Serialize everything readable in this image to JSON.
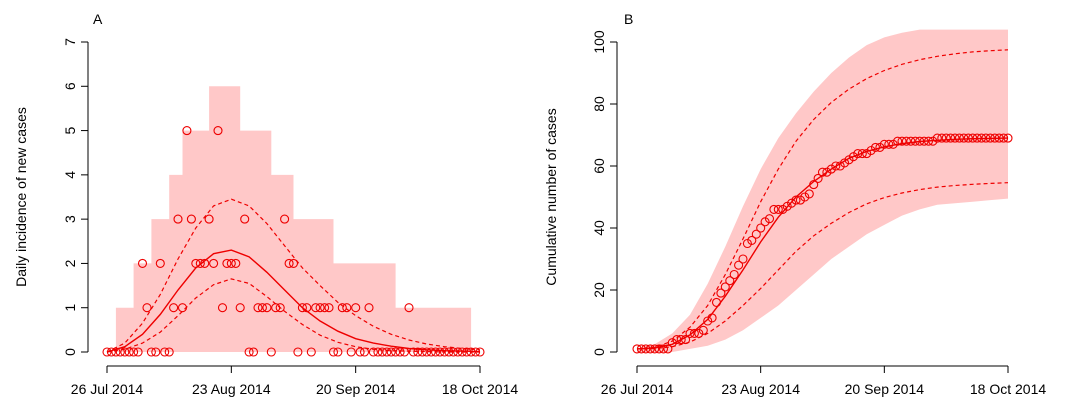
{
  "colors": {
    "band": "#ffc8c8",
    "line": "#ee0000",
    "points": "#ee0000",
    "axis": "#000000"
  },
  "chart_data": [
    {
      "type": "scatter",
      "panel_label": "A",
      "ylabel": "Daily incidence of new cases",
      "ylim": [
        0,
        7
      ],
      "yticks": [
        0,
        1,
        2,
        3,
        4,
        5,
        6,
        7
      ],
      "xlim": [
        "2014-07-26",
        "2014-10-18"
      ],
      "xticks": [
        "26 Jul 2014",
        "23 Aug 2014",
        "20 Sep 2014",
        "18 Oct 2014"
      ],
      "grid": false,
      "points": {
        "x": [
          "2014-07-26",
          "2014-07-27",
          "2014-07-28",
          "2014-07-29",
          "2014-07-30",
          "2014-07-31",
          "2014-08-01",
          "2014-08-02",
          "2014-08-03",
          "2014-08-04",
          "2014-08-05",
          "2014-08-06",
          "2014-08-07",
          "2014-08-08",
          "2014-08-09",
          "2014-08-10",
          "2014-08-11",
          "2014-08-12",
          "2014-08-13",
          "2014-08-14",
          "2014-08-15",
          "2014-08-16",
          "2014-08-17",
          "2014-08-18",
          "2014-08-19",
          "2014-08-20",
          "2014-08-21",
          "2014-08-22",
          "2014-08-23",
          "2014-08-24",
          "2014-08-25",
          "2014-08-26",
          "2014-08-27",
          "2014-08-28",
          "2014-08-29",
          "2014-08-30",
          "2014-08-31",
          "2014-09-01",
          "2014-09-02",
          "2014-09-03",
          "2014-09-04",
          "2014-09-05",
          "2014-09-06",
          "2014-09-07",
          "2014-09-08",
          "2014-09-09",
          "2014-09-10",
          "2014-09-11",
          "2014-09-12",
          "2014-09-13",
          "2014-09-14",
          "2014-09-15",
          "2014-09-16",
          "2014-09-17",
          "2014-09-18",
          "2014-09-19",
          "2014-09-20",
          "2014-09-21",
          "2014-09-22",
          "2014-09-23",
          "2014-09-24",
          "2014-09-25",
          "2014-09-26",
          "2014-09-27",
          "2014-09-28",
          "2014-09-29",
          "2014-09-30",
          "2014-10-01",
          "2014-10-02",
          "2014-10-03",
          "2014-10-04",
          "2014-10-05",
          "2014-10-06",
          "2014-10-07",
          "2014-10-08",
          "2014-10-09",
          "2014-10-10",
          "2014-10-11",
          "2014-10-12",
          "2014-10-13",
          "2014-10-14",
          "2014-10-15",
          "2014-10-16",
          "2014-10-17",
          "2014-10-18"
        ],
        "y": [
          0,
          0,
          0,
          0,
          0,
          0,
          0,
          0,
          2,
          1,
          0,
          0,
          2,
          0,
          0,
          1,
          3,
          1,
          5,
          3,
          2,
          2,
          2,
          3,
          2,
          5,
          1,
          2,
          2,
          2,
          1,
          3,
          0,
          0,
          1,
          1,
          1,
          0,
          1,
          1,
          3,
          2,
          2,
          0,
          1,
          1,
          0,
          1,
          1,
          1,
          1,
          0,
          0,
          1,
          1,
          0,
          1,
          0,
          0,
          1,
          0,
          0,
          0,
          0,
          0,
          0,
          0,
          0,
          1,
          0,
          0,
          0,
          0,
          0,
          0,
          0,
          0,
          0,
          0,
          0,
          0,
          0,
          0,
          0,
          0
        ]
      },
      "median": {
        "x": [
          "2014-07-26",
          "2014-07-30",
          "2014-08-03",
          "2014-08-07",
          "2014-08-11",
          "2014-08-15",
          "2014-08-19",
          "2014-08-23",
          "2014-08-27",
          "2014-08-31",
          "2014-09-04",
          "2014-09-08",
          "2014-09-12",
          "2014-09-16",
          "2014-09-20",
          "2014-09-24",
          "2014-09-28",
          "2014-10-02",
          "2014-10-06",
          "2014-10-10",
          "2014-10-14",
          "2014-10-18"
        ],
        "y": [
          0.0,
          0.12,
          0.4,
          0.85,
          1.4,
          1.9,
          2.22,
          2.3,
          2.15,
          1.8,
          1.4,
          1.0,
          0.7,
          0.47,
          0.3,
          0.2,
          0.13,
          0.08,
          0.05,
          0.03,
          0.02,
          0.01
        ]
      },
      "ci_lower": {
        "x": [
          "2014-07-26",
          "2014-07-30",
          "2014-08-03",
          "2014-08-07",
          "2014-08-11",
          "2014-08-15",
          "2014-08-19",
          "2014-08-23",
          "2014-08-27",
          "2014-08-31",
          "2014-09-04",
          "2014-09-08",
          "2014-09-12",
          "2014-09-16",
          "2014-09-20",
          "2014-09-24",
          "2014-09-28",
          "2014-10-02",
          "2014-10-06",
          "2014-10-10",
          "2014-10-14",
          "2014-10-18"
        ],
        "y": [
          0.0,
          0.06,
          0.2,
          0.45,
          0.82,
          1.22,
          1.52,
          1.65,
          1.55,
          1.25,
          0.92,
          0.62,
          0.38,
          0.22,
          0.12,
          0.06,
          0.03,
          0.02,
          0.01,
          0.0,
          0.0,
          0.0
        ]
      },
      "ci_upper": {
        "x": [
          "2014-07-26",
          "2014-07-30",
          "2014-08-03",
          "2014-08-07",
          "2014-08-11",
          "2014-08-15",
          "2014-08-19",
          "2014-08-23",
          "2014-08-27",
          "2014-08-31",
          "2014-09-04",
          "2014-09-08",
          "2014-09-12",
          "2014-09-16",
          "2014-09-20",
          "2014-09-24",
          "2014-09-28",
          "2014-10-02",
          "2014-10-06",
          "2014-10-10",
          "2014-10-14",
          "2014-10-18"
        ],
        "y": [
          0.0,
          0.2,
          0.65,
          1.3,
          2.1,
          2.8,
          3.3,
          3.45,
          3.3,
          2.9,
          2.4,
          1.9,
          1.5,
          1.12,
          0.82,
          0.58,
          0.4,
          0.27,
          0.18,
          0.12,
          0.08,
          0.05
        ]
      },
      "band_upper": {
        "x": [
          "2014-07-26",
          "2014-07-28",
          "2014-07-28",
          "2014-08-01",
          "2014-08-01",
          "2014-08-05",
          "2014-08-05",
          "2014-08-09",
          "2014-08-09",
          "2014-08-12",
          "2014-08-12",
          "2014-08-18",
          "2014-08-18",
          "2014-08-25",
          "2014-08-25",
          "2014-09-01",
          "2014-09-01",
          "2014-09-06",
          "2014-09-06",
          "2014-09-15",
          "2014-09-15",
          "2014-09-29",
          "2014-09-29",
          "2014-10-16",
          "2014-10-16",
          "2014-10-18"
        ],
        "y": [
          0,
          0,
          1,
          1,
          2,
          2,
          3,
          3,
          4,
          4,
          5,
          5,
          6,
          6,
          5,
          5,
          4,
          4,
          3,
          3,
          2,
          2,
          1,
          1,
          0,
          0
        ]
      }
    },
    {
      "type": "scatter",
      "panel_label": "B",
      "ylabel": "Cumulative number of cases",
      "ylim": [
        0,
        100
      ],
      "yticks": [
        0,
        20,
        40,
        60,
        80,
        100
      ],
      "xlim": [
        "2014-07-26",
        "2014-10-18"
      ],
      "xticks": [
        "26 Jul 2014",
        "23 Aug 2014",
        "20 Sep 2014",
        "18 Oct 2014"
      ],
      "grid": false,
      "points": {
        "x": [
          "2014-07-26",
          "2014-07-27",
          "2014-07-28",
          "2014-07-29",
          "2014-07-30",
          "2014-07-31",
          "2014-08-01",
          "2014-08-02",
          "2014-08-03",
          "2014-08-04",
          "2014-08-05",
          "2014-08-06",
          "2014-08-07",
          "2014-08-08",
          "2014-08-09",
          "2014-08-10",
          "2014-08-11",
          "2014-08-12",
          "2014-08-13",
          "2014-08-14",
          "2014-08-15",
          "2014-08-16",
          "2014-08-17",
          "2014-08-18",
          "2014-08-19",
          "2014-08-20",
          "2014-08-21",
          "2014-08-22",
          "2014-08-23",
          "2014-08-24",
          "2014-08-25",
          "2014-08-26",
          "2014-08-27",
          "2014-08-28",
          "2014-08-29",
          "2014-08-30",
          "2014-08-31",
          "2014-09-01",
          "2014-09-02",
          "2014-09-03",
          "2014-09-04",
          "2014-09-05",
          "2014-09-06",
          "2014-09-07",
          "2014-09-08",
          "2014-09-09",
          "2014-09-10",
          "2014-09-11",
          "2014-09-12",
          "2014-09-13",
          "2014-09-14",
          "2014-09-15",
          "2014-09-16",
          "2014-09-17",
          "2014-09-18",
          "2014-09-19",
          "2014-09-20",
          "2014-09-21",
          "2014-09-22",
          "2014-09-23",
          "2014-09-24",
          "2014-09-25",
          "2014-09-26",
          "2014-09-27",
          "2014-09-28",
          "2014-09-29",
          "2014-09-30",
          "2014-10-01",
          "2014-10-02",
          "2014-10-03",
          "2014-10-04",
          "2014-10-05",
          "2014-10-06",
          "2014-10-07",
          "2014-10-08",
          "2014-10-09",
          "2014-10-10",
          "2014-10-11",
          "2014-10-12",
          "2014-10-13",
          "2014-10-14",
          "2014-10-15",
          "2014-10-16",
          "2014-10-17",
          "2014-10-18"
        ],
        "y": [
          1,
          1,
          1,
          1,
          1,
          1,
          1,
          1,
          3,
          4,
          4,
          4,
          6,
          6,
          6,
          7,
          10,
          11,
          16,
          19,
          21,
          23,
          25,
          28,
          30,
          35,
          36,
          38,
          40,
          42,
          43,
          46,
          46,
          46,
          47,
          48,
          49,
          49,
          50,
          51,
          54,
          56,
          58,
          58,
          59,
          60,
          60,
          61,
          62,
          63,
          64,
          64,
          64,
          65,
          66,
          66,
          67,
          67,
          67,
          68,
          68,
          68,
          68,
          68,
          68,
          68,
          68,
          68,
          69,
          69,
          69,
          69,
          69,
          69,
          69,
          69,
          69,
          69,
          69,
          69,
          69,
          69,
          69,
          69,
          69
        ]
      },
      "median": {
        "x": [
          "2014-07-26",
          "2014-07-30",
          "2014-08-03",
          "2014-08-07",
          "2014-08-11",
          "2014-08-15",
          "2014-08-19",
          "2014-08-23",
          "2014-08-27",
          "2014-08-31",
          "2014-09-04",
          "2014-09-08",
          "2014-09-12",
          "2014-09-16",
          "2014-09-20",
          "2014-09-24",
          "2014-09-28",
          "2014-10-02",
          "2014-10-06",
          "2014-10-10",
          "2014-10-14",
          "2014-10-18"
        ],
        "y": [
          1,
          1.3,
          2.5,
          5.5,
          10.5,
          18,
          26.5,
          35.5,
          43.5,
          50,
          55,
          59,
          62.5,
          64.7,
          66.2,
          67.2,
          67.9,
          68.3,
          68.6,
          68.8,
          68.9,
          69
        ]
      },
      "ci_lower": {
        "x": [
          "2014-07-26",
          "2014-07-30",
          "2014-08-03",
          "2014-08-07",
          "2014-08-11",
          "2014-08-15",
          "2014-08-19",
          "2014-08-23",
          "2014-08-27",
          "2014-08-31",
          "2014-09-04",
          "2014-09-08",
          "2014-09-12",
          "2014-09-16",
          "2014-09-20",
          "2014-09-24",
          "2014-09-28",
          "2014-10-02",
          "2014-10-06",
          "2014-10-10",
          "2014-10-14",
          "2014-10-18"
        ],
        "y": [
          1,
          1.1,
          1.7,
          3.2,
          6,
          10,
          15,
          20.5,
          26.5,
          32.5,
          37.5,
          41.5,
          45,
          47.8,
          49.8,
          51.3,
          52.4,
          53.2,
          53.7,
          54.1,
          54.4,
          54.6
        ]
      },
      "ci_upper": {
        "x": [
          "2014-07-26",
          "2014-07-30",
          "2014-08-03",
          "2014-08-07",
          "2014-08-11",
          "2014-08-15",
          "2014-08-19",
          "2014-08-23",
          "2014-08-27",
          "2014-08-31",
          "2014-09-04",
          "2014-09-08",
          "2014-09-12",
          "2014-09-16",
          "2014-09-20",
          "2014-09-24",
          "2014-09-28",
          "2014-10-02",
          "2014-10-06",
          "2014-10-10",
          "2014-10-14",
          "2014-10-18"
        ],
        "y": [
          1,
          1.5,
          3.5,
          8,
          15,
          25,
          36.5,
          48.5,
          59,
          68,
          75,
          80.5,
          84.8,
          88.2,
          90.8,
          92.8,
          94.3,
          95.4,
          96.2,
          96.8,
          97.2,
          97.5
        ]
      },
      "band_upper": {
        "x": [
          "2014-07-26",
          "2014-07-30",
          "2014-08-03",
          "2014-08-07",
          "2014-08-11",
          "2014-08-15",
          "2014-08-19",
          "2014-08-23",
          "2014-08-27",
          "2014-08-31",
          "2014-09-04",
          "2014-09-08",
          "2014-09-12",
          "2014-09-16",
          "2014-09-20",
          "2014-09-24",
          "2014-09-28",
          "2014-10-02",
          "2014-10-18"
        ],
        "y": [
          1,
          2.5,
          6,
          12,
          22,
          34,
          47,
          59,
          69,
          77,
          84,
          90,
          95,
          99,
          101.5,
          103,
          104,
          104,
          104
        ]
      },
      "band_lower": {
        "x": [
          "2014-07-26",
          "2014-07-30",
          "2014-08-03",
          "2014-08-07",
          "2014-08-11",
          "2014-08-15",
          "2014-08-19",
          "2014-08-23",
          "2014-08-27",
          "2014-08-31",
          "2014-09-04",
          "2014-09-08",
          "2014-09-12",
          "2014-09-16",
          "2014-09-20",
          "2014-09-24",
          "2014-09-28",
          "2014-10-02",
          "2014-10-06",
          "2014-10-10",
          "2014-10-14",
          "2014-10-18"
        ],
        "y": [
          0,
          0,
          0,
          1,
          2,
          4,
          7,
          11,
          15,
          20,
          25,
          30,
          34,
          38,
          41,
          44,
          46,
          47.5,
          48,
          48.5,
          49,
          49.5
        ]
      }
    }
  ]
}
